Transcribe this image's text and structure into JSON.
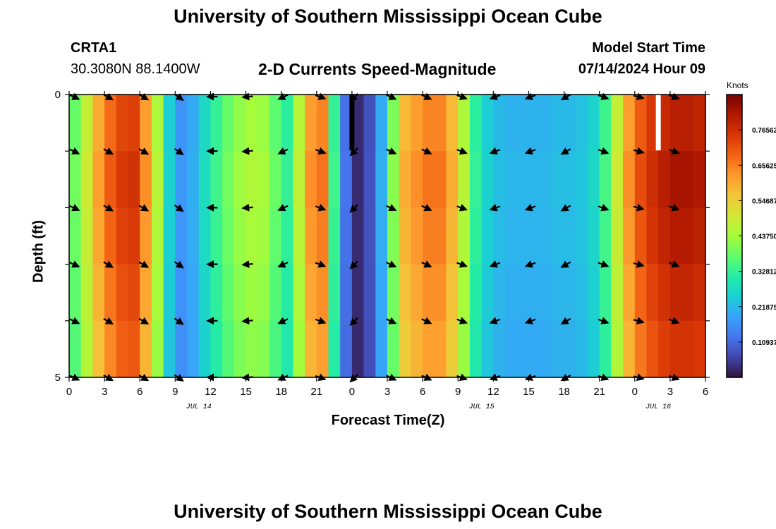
{
  "header": {
    "title": "University of Southern Mississippi Ocean Cube",
    "station_id": "CRTA1",
    "station_coords": "30.3080N  88.1400W",
    "subtitle": "2-D Currents Speed-Magnitude",
    "model_start_label": "Model Start Time",
    "model_start_value": "07/14/2024 Hour 09"
  },
  "footer": {
    "repeat_title": "University of Southern Mississippi Ocean Cube"
  },
  "chart_data": {
    "type": "heatmap",
    "title": "2-D Currents Speed-Magnitude",
    "xlabel": "Forecast Time(Z)",
    "ylabel": "Depth (ft)",
    "x_hours_range": [
      0,
      54
    ],
    "x_tick_labels": [
      "0",
      "3",
      "6",
      "9",
      "12",
      "15",
      "18",
      "21",
      "0",
      "3",
      "6",
      "9",
      "12",
      "15",
      "18",
      "21",
      "0",
      "3",
      "6"
    ],
    "date_labels": [
      {
        "text": "JUL 14",
        "hour": 11
      },
      {
        "text": "JUL 15",
        "hour": 35
      },
      {
        "text": "JUL 16",
        "hour": 50
      }
    ],
    "y_tick_labels": [
      {
        "text": "0",
        "depth": 0
      },
      {
        "text": "5",
        "depth": 5
      }
    ],
    "ylim_ft": [
      0,
      5
    ],
    "colorbar": {
      "unit": "Knots",
      "min": 0.0,
      "max": 0.875,
      "ticks": [
        "0.76562",
        "0.65625",
        "0.54687",
        "0.43750",
        "0.32812",
        "0.21875",
        "0.10937"
      ],
      "tick_values": [
        0.76562,
        0.65625,
        0.54687,
        0.4375,
        0.32812,
        0.21875,
        0.10937
      ],
      "colors": [
        "#30123b",
        "#4145ab",
        "#4675ed",
        "#39a2fc",
        "#1bcfd4",
        "#24eca6",
        "#61fc6c",
        "#a4fc3b",
        "#d1e834",
        "#f3c63a",
        "#fe9b2d",
        "#f36315",
        "#d93806",
        "#b11901",
        "#7a0402"
      ]
    },
    "speed_by_hour_knots": [
      0.38,
      0.48,
      0.6,
      0.68,
      0.73,
      0.74,
      0.62,
      0.45,
      0.25,
      0.17,
      0.2,
      0.27,
      0.33,
      0.38,
      0.42,
      0.44,
      0.43,
      0.37,
      0.32,
      0.46,
      0.62,
      0.65,
      0.33,
      0.12,
      0.03,
      0.08,
      0.2,
      0.4,
      0.58,
      0.62,
      0.65,
      0.65,
      0.58,
      0.45,
      0.32,
      0.25,
      0.22,
      0.21,
      0.21,
      0.21,
      0.21,
      0.22,
      0.22,
      0.23,
      0.26,
      0.34,
      0.48,
      0.62,
      0.7,
      0.75,
      0.78,
      0.8,
      0.8,
      0.79,
      0.78
    ],
    "depth_layers_ft": [
      0,
      1,
      2,
      3,
      4,
      5
    ],
    "depth_factors": [
      1.0,
      1.03,
      1.01,
      0.98,
      0.95,
      0.92
    ],
    "vector_hours": [
      0,
      3,
      6,
      9,
      12,
      15,
      18,
      21,
      24,
      27,
      30,
      33,
      36,
      39,
      42,
      45,
      48,
      51
    ],
    "vector_directions_deg": [
      25,
      30,
      30,
      35,
      180,
      175,
      155,
      20,
      135,
      25,
      25,
      20,
      160,
      160,
      150,
      20,
      15,
      20
    ],
    "surface_missing_hours": [
      24,
      50
    ]
  }
}
